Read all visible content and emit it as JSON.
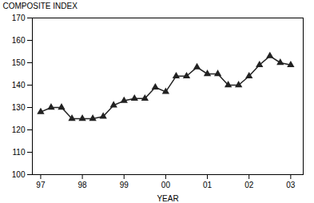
{
  "chart_data": {
    "type": "line",
    "xlabel": "YEAR",
    "ylabel": "COMPOSITE INDEX",
    "x": [
      97.0,
      97.25,
      97.5,
      97.75,
      98.0,
      98.25,
      98.5,
      98.75,
      99.0,
      99.25,
      99.5,
      99.75,
      100.0,
      100.25,
      100.5,
      100.75,
      101.0,
      101.25,
      101.5,
      101.75,
      102.0,
      102.25,
      102.5,
      102.75,
      103.0
    ],
    "values": [
      128,
      130,
      130,
      125,
      125,
      125,
      126,
      131,
      133,
      134,
      134,
      139,
      137,
      144,
      144,
      148,
      145,
      145,
      140,
      140,
      144,
      149,
      153,
      150,
      149
    ],
    "color": "#222222",
    "marker": "triangle",
    "xlim": [
      96.8,
      103.3
    ],
    "ylim": [
      100,
      170
    ],
    "xticks": [
      97,
      98,
      99,
      {
        "value": 100,
        "label": "00"
      },
      {
        "value": 101,
        "label": "01"
      },
      {
        "value": 102,
        "label": "02"
      },
      {
        "value": 103,
        "label": "03"
      }
    ],
    "yticks": [
      100,
      110,
      120,
      130,
      140,
      150,
      160,
      170
    ],
    "grid": false
  }
}
